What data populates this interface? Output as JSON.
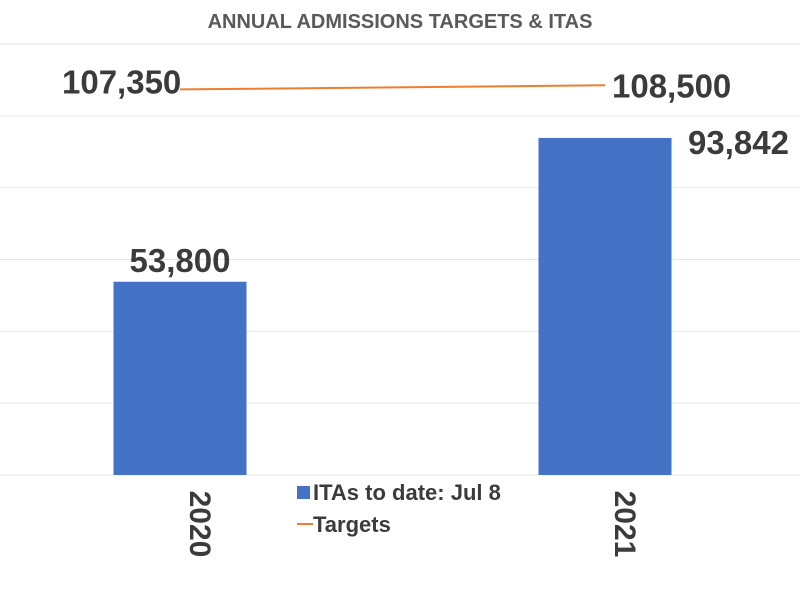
{
  "chart_data": {
    "type": "bar",
    "title": "ANNUAL ADMISSIONS TARGETS & ITAS",
    "categories": [
      "2020",
      "2021"
    ],
    "series": [
      {
        "name": "ITAs to date: Jul 8",
        "kind": "bar",
        "color": "#4472C4",
        "values": [
          53800,
          93842
        ],
        "labels": [
          "53,800",
          "93,842"
        ]
      },
      {
        "name": "Targets",
        "kind": "line",
        "color": "#ED7D31",
        "values": [
          107350,
          108500
        ],
        "labels": [
          "107,350",
          "108,500"
        ]
      }
    ],
    "ylim": [
      0,
      120000
    ],
    "grid": true,
    "legend_position": "bottom-center",
    "xlabel": "",
    "ylabel": ""
  }
}
